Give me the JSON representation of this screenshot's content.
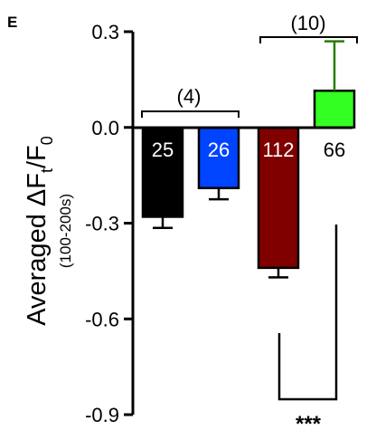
{
  "panel_label": "E",
  "chart_data": {
    "type": "bar",
    "ylabel": "Averaged ΔFt/F0",
    "ylabel_main": "Averaged ΔF",
    "ylabel_sub_t": "t",
    "ylabel_slash": "/F",
    "ylabel_sub_0": "0",
    "ylabel_range": "(100-200s)",
    "ylim": [
      -0.9,
      0.3
    ],
    "yticks": [
      0.3,
      0.0,
      -0.3,
      -0.6,
      -0.9
    ],
    "ytick_labels": [
      "0.3",
      "0.0",
      "-0.3",
      "-0.6",
      "-0.9"
    ],
    "bars": [
      {
        "n_label": "25",
        "value": -0.28,
        "error": 0.035,
        "color": "#000000",
        "label_color": "#ffffff"
      },
      {
        "n_label": "26",
        "value": -0.19,
        "error": 0.035,
        "color": "#0044ff",
        "label_color": "#ffffff"
      },
      {
        "n_label": "112",
        "value": -0.44,
        "error": 0.03,
        "color": "#800000",
        "label_color": "#ffffff"
      },
      {
        "n_label": "66",
        "value": 0.115,
        "error": 0.155,
        "color": "#33ff22",
        "label_color": "#000000"
      }
    ],
    "group_labels": [
      "(4)",
      "(10)"
    ],
    "significance": "***"
  }
}
